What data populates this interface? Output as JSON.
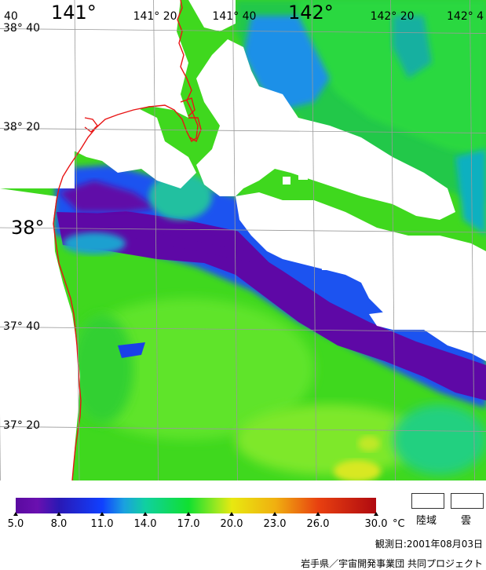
{
  "map": {
    "lon_labels": [
      {
        "text": "40",
        "lon": 140.667,
        "major": false
      },
      {
        "text": "141°",
        "lon": 141.0,
        "major": true
      },
      {
        "text": "141° 20",
        "lon": 141.333,
        "major": false
      },
      {
        "text": "141° 40",
        "lon": 141.667,
        "major": false
      },
      {
        "text": "142°",
        "lon": 142.0,
        "major": true
      },
      {
        "text": "142° 20",
        "lon": 142.333,
        "major": false
      },
      {
        "text": "142° 4",
        "lon": 142.667,
        "major": false
      }
    ],
    "lat_labels": [
      {
        "text": "38° 40",
        "lat": 38.667,
        "major": false
      },
      {
        "text": "38° 20",
        "lat": 38.333,
        "major": false
      },
      {
        "text": "38°",
        "lat": 38.0,
        "major": true
      },
      {
        "text": "37° 40",
        "lat": 37.667,
        "major": false
      },
      {
        "text": "37° 20",
        "lat": 37.333,
        "major": false
      }
    ],
    "colors": {
      "coastline": "#e81414",
      "cloud": "#ffffff",
      "land": "#ffffff",
      "grid": "#9a9a9a"
    }
  },
  "legend": {
    "min": 5.0,
    "max": 30.0,
    "ticks": [
      "5.0",
      "8.0",
      "11.0",
      "14.0",
      "17.0",
      "20.0",
      "23.0",
      "26.0",
      "30.0"
    ],
    "unit": "°C",
    "land_label": "陸域",
    "cloud_label": "雲",
    "stops": [
      {
        "value": 5.0,
        "color": "#5a0aa0"
      },
      {
        "value": 6.5,
        "color": "#6a10b0"
      },
      {
        "value": 8.0,
        "color": "#2a18b4"
      },
      {
        "value": 11.0,
        "color": "#1040ff"
      },
      {
        "value": 12.5,
        "color": "#1aa0e0"
      },
      {
        "value": 14.0,
        "color": "#10d0a0"
      },
      {
        "value": 17.0,
        "color": "#10e030"
      },
      {
        "value": 19.0,
        "color": "#a0e820"
      },
      {
        "value": 20.0,
        "color": "#e8e810"
      },
      {
        "value": 23.0,
        "color": "#f0b010"
      },
      {
        "value": 26.0,
        "color": "#e84010"
      },
      {
        "value": 30.0,
        "color": "#b00a10"
      }
    ]
  },
  "footer": {
    "observation_date": "観測日:2001年08月03日",
    "credit": "岩手県／宇宙開発事業団 共同プロジェクト"
  }
}
